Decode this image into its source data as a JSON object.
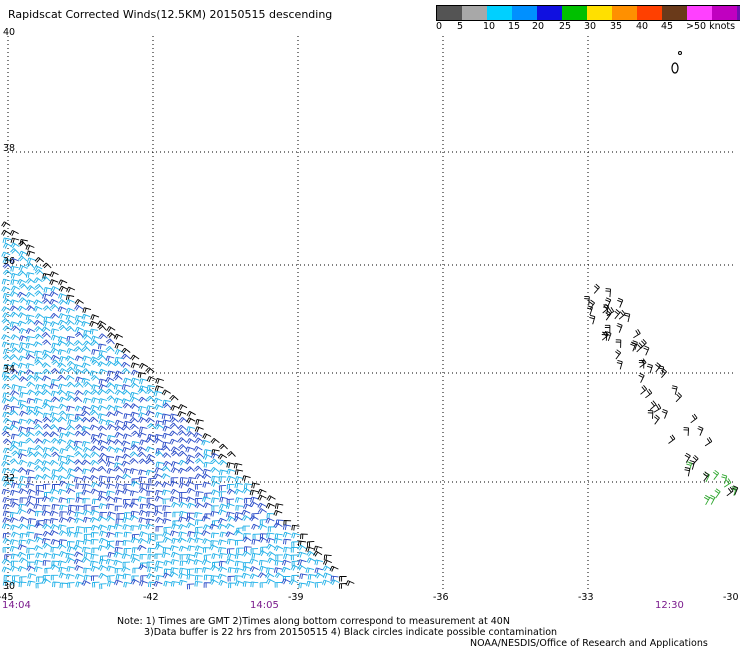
{
  "title": "Rapidscat Corrected Winds(12.5KM) 20150515 descending",
  "legend": {
    "colors": [
      "#545454",
      "#a8a8a8",
      "#00d0ff",
      "#0090ff",
      "#1010e0",
      "#00c000",
      "#ffe000",
      "#ff9000",
      "#ff4000",
      "#6a3a1a",
      "#ff40ff",
      "#c000c0",
      "#7010b0"
    ],
    "labels": [
      "0",
      "5",
      "10",
      "15",
      "20",
      "25",
      "30",
      "35",
      "40",
      "45",
      ">50 knots"
    ]
  },
  "axes": {
    "lat_labels": [
      "40",
      "38",
      "36",
      "34",
      "32",
      "30"
    ],
    "lon_labels": [
      "-45",
      "-42",
      "-39",
      "-36",
      "-33",
      "-30"
    ]
  },
  "times": [
    "14:04",
    "14:05",
    "12:30"
  ],
  "notes": [
    "Note: 1) Times are GMT 2)Times along bottom correspond to measurement at 40N",
    "3)Data buffer is 22 hrs from 20150515 4) Black circles indicate possible contamination",
    "NOAA/NESDIS/Office of Research and Applications"
  ],
  "colors": {
    "cyan": "#1fb0e8",
    "blue": "#2a4cc8",
    "black": "#000000",
    "green": "#2ea62e",
    "time_purple": "#7a1a8c"
  }
}
